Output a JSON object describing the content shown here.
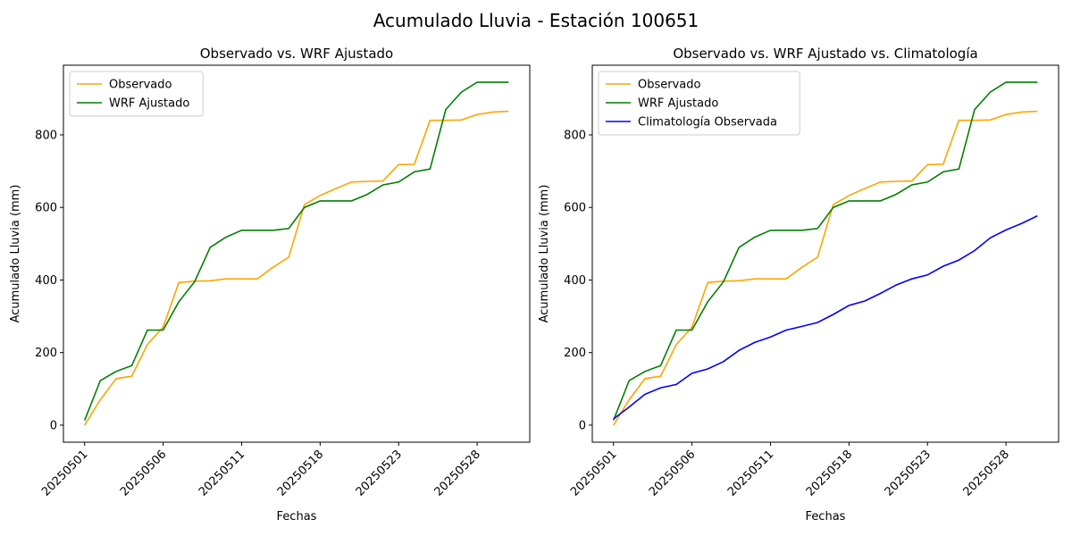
{
  "title": "Acumulado Lluvia - Estación 100651",
  "chart_data": [
    {
      "type": "line",
      "title": "Observado vs. WRF Ajustado",
      "x_label": "Fechas",
      "y_label": "Acumulado Lluvia (mm)",
      "categories": [
        "20250501",
        null,
        null,
        null,
        null,
        "20250506",
        null,
        null,
        null,
        null,
        "20250511",
        null,
        null,
        null,
        null,
        "20250518",
        null,
        null,
        null,
        null,
        "20250523",
        null,
        null,
        null,
        null,
        "20250528",
        null,
        null
      ],
      "series": [
        {
          "name": "Observado",
          "color": "#ffa500",
          "values": [
            0,
            70,
            128,
            135,
            222,
            270,
            393,
            397,
            398,
            403,
            403,
            403,
            435,
            463,
            608,
            633,
            652,
            670,
            672,
            673,
            718,
            719,
            840,
            840,
            841,
            856,
            863,
            865
          ]
        },
        {
          "name": "WRF Ajustado",
          "color": "#008000",
          "values": [
            13,
            123,
            148,
            164,
            262,
            262,
            340,
            395,
            490,
            518,
            537,
            537,
            537,
            542,
            600,
            618,
            618,
            618,
            636,
            662,
            670,
            698,
            706,
            870,
            918,
            945,
            945,
            945
          ]
        }
      ],
      "ylim": [
        -47,
        992
      ],
      "yticks": [
        0,
        200,
        400,
        600,
        800
      ],
      "legend": "upper left"
    },
    {
      "type": "line",
      "title": "Observado vs. WRF Ajustado vs. Climatología",
      "x_label": "Fechas",
      "y_label": "Acumulado Lluvia (mm)",
      "categories": [
        "20250501",
        null,
        null,
        null,
        null,
        "20250506",
        null,
        null,
        null,
        null,
        "20250511",
        null,
        null,
        null,
        null,
        "20250518",
        null,
        null,
        null,
        null,
        "20250523",
        null,
        null,
        null,
        null,
        "20250528",
        null,
        null
      ],
      "series": [
        {
          "name": "Observado",
          "color": "#ffa500",
          "values": [
            0,
            70,
            128,
            135,
            222,
            270,
            393,
            397,
            398,
            403,
            403,
            403,
            435,
            463,
            608,
            633,
            652,
            670,
            672,
            673,
            718,
            719,
            840,
            840,
            841,
            856,
            863,
            865
          ]
        },
        {
          "name": "WRF Ajustado",
          "color": "#008000",
          "values": [
            13,
            123,
            148,
            164,
            262,
            262,
            340,
            395,
            490,
            518,
            537,
            537,
            537,
            542,
            600,
            618,
            618,
            618,
            636,
            662,
            670,
            698,
            706,
            870,
            918,
            945,
            945,
            945
          ]
        },
        {
          "name": "Climatología Observada",
          "color": "#0000ff",
          "values": [
            17,
            50,
            85,
            103,
            112,
            143,
            155,
            175,
            206,
            228,
            243,
            262,
            272,
            283,
            305,
            330,
            342,
            363,
            386,
            403,
            414,
            438,
            455,
            481,
            516,
            538,
            556,
            577
          ]
        }
      ],
      "ylim": [
        -47,
        992
      ],
      "yticks": [
        0,
        200,
        400,
        600,
        800
      ],
      "legend": "upper left"
    }
  ]
}
